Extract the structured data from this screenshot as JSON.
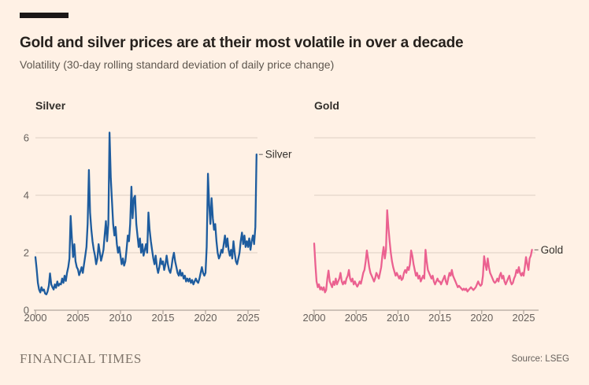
{
  "page": {
    "background": "#FFF1E5",
    "brand_bar_color": "#1A1817"
  },
  "header": {
    "title": "Gold and silver prices are at their most volatile in over a decade",
    "subtitle": "Volatility (30-day rolling standard deviation of daily price change)"
  },
  "footer": {
    "brand": "FINANCIAL TIMES",
    "source": "Source: LSEG"
  },
  "styles": {
    "grid_color": "#DDD0C2",
    "axis_color": "#9C948A",
    "axis_text_color": "#66605C",
    "label_text_color": "#33302C",
    "silver_color": "#1E5C9E",
    "gold_color": "#EB6190"
  },
  "chart_data": [
    {
      "type": "line",
      "title": "Silver",
      "series_label": "Silver",
      "color": "#1E5C9E",
      "x_start": 2000,
      "x_step": 0.142857,
      "xlim": [
        2000,
        2026.3
      ],
      "ylim": [
        0,
        6.4
      ],
      "yticks": [
        0,
        2,
        4,
        6
      ],
      "xticks": [
        2000,
        2005,
        2010,
        2015,
        2020,
        2025
      ],
      "show_y_labels": true,
      "grid": true,
      "values": [
        1.85,
        1.45,
        0.95,
        0.72,
        0.62,
        0.8,
        0.68,
        0.72,
        0.58,
        0.55,
        0.65,
        0.85,
        1.28,
        0.9,
        0.8,
        0.72,
        0.9,
        0.78,
        1.0,
        0.85,
        0.92,
        0.9,
        1.1,
        0.95,
        1.2,
        1.02,
        1.3,
        1.5,
        1.8,
        3.28,
        2.5,
        1.85,
        2.3,
        1.7,
        1.5,
        1.42,
        1.22,
        1.35,
        1.5,
        1.3,
        1.6,
        1.9,
        2.2,
        3.0,
        4.88,
        3.4,
        2.8,
        2.4,
        2.1,
        1.9,
        1.6,
        1.8,
        2.3,
        2.0,
        1.72,
        1.9,
        2.1,
        2.6,
        3.1,
        2.4,
        3.0,
        6.18,
        4.6,
        3.8,
        3.0,
        2.6,
        2.9,
        2.3,
        2.0,
        2.2,
        1.9,
        1.6,
        1.8,
        1.55,
        1.7,
        2.1,
        2.6,
        2.4,
        3.0,
        4.3,
        3.2,
        3.9,
        3.98,
        3.0,
        2.6,
        2.2,
        2.5,
        2.0,
        2.3,
        1.9,
        2.1,
        2.3,
        2.0,
        3.4,
        2.8,
        2.4,
        2.1,
        1.8,
        1.6,
        1.9,
        1.5,
        1.3,
        1.5,
        1.8,
        1.6,
        1.7,
        1.4,
        1.6,
        1.9,
        1.6,
        1.4,
        1.3,
        1.5,
        1.8,
        2.0,
        1.7,
        1.5,
        1.3,
        1.2,
        1.4,
        1.2,
        1.3,
        1.1,
        1.2,
        1.0,
        1.1,
        1.0,
        1.1,
        0.95,
        1.05,
        0.9,
        1.0,
        1.1,
        1.0,
        0.95,
        1.1,
        1.3,
        1.5,
        1.3,
        1.2,
        1.3,
        2.2,
        4.75,
        3.7,
        3.0,
        3.9,
        3.2,
        2.8,
        3.0,
        2.4,
        2.0,
        1.8,
        1.9,
        2.1,
        2.0,
        2.3,
        2.6,
        2.2,
        2.5,
        2.1,
        1.9,
        2.1,
        1.8,
        2.4,
        2.0,
        1.7,
        1.6,
        1.8,
        2.0,
        2.4,
        2.7,
        2.3,
        2.6,
        2.2,
        2.4,
        2.2,
        2.5,
        2.1,
        2.4,
        2.6,
        2.3,
        2.9,
        5.42
      ]
    },
    {
      "type": "line",
      "title": "Gold",
      "series_label": "Gold",
      "color": "#EB6190",
      "x_start": 2000,
      "x_step": 0.142857,
      "xlim": [
        2000,
        2026.3
      ],
      "ylim": [
        0,
        6.4
      ],
      "yticks": [
        0,
        2,
        4,
        6
      ],
      "xticks": [
        2000,
        2005,
        2010,
        2015,
        2020,
        2025
      ],
      "show_y_labels": false,
      "grid": true,
      "values": [
        2.32,
        1.6,
        1.0,
        0.8,
        0.9,
        0.72,
        0.8,
        0.7,
        0.8,
        0.62,
        0.7,
        1.1,
        1.38,
        1.0,
        0.9,
        0.8,
        1.0,
        0.88,
        1.1,
        0.9,
        1.0,
        1.1,
        1.3,
        1.0,
        0.9,
        1.0,
        0.92,
        1.1,
        1.2,
        1.4,
        1.1,
        1.0,
        1.1,
        0.9,
        1.0,
        0.9,
        0.82,
        0.9,
        1.0,
        0.92,
        1.1,
        1.3,
        1.4,
        1.7,
        2.08,
        1.8,
        1.5,
        1.3,
        1.2,
        1.1,
        1.0,
        1.12,
        1.3,
        1.2,
        1.1,
        1.3,
        1.5,
        1.9,
        2.2,
        1.8,
        2.1,
        3.48,
        2.9,
        2.4,
        2.0,
        1.7,
        1.5,
        1.35,
        1.2,
        1.3,
        1.2,
        1.1,
        1.2,
        1.05,
        1.1,
        1.3,
        1.4,
        1.3,
        1.5,
        1.4,
        1.6,
        2.08,
        1.9,
        1.6,
        1.4,
        1.2,
        1.3,
        1.1,
        1.2,
        1.0,
        1.1,
        1.2,
        1.1,
        2.1,
        1.7,
        1.4,
        1.3,
        1.2,
        1.1,
        1.2,
        1.0,
        0.9,
        1.0,
        1.1,
        1.0,
        1.0,
        0.9,
        1.0,
        1.1,
        1.2,
        1.0,
        0.9,
        1.1,
        1.3,
        1.2,
        1.4,
        1.2,
        1.1,
        1.0,
        0.9,
        0.8,
        0.85,
        0.8,
        0.75,
        0.7,
        0.75,
        0.7,
        0.75,
        0.65,
        0.7,
        0.75,
        0.8,
        0.75,
        0.7,
        0.75,
        0.8,
        0.9,
        1.0,
        0.9,
        0.85,
        0.9,
        1.2,
        1.88,
        1.6,
        1.4,
        1.8,
        1.5,
        1.3,
        1.2,
        1.1,
        1.0,
        0.95,
        1.0,
        1.1,
        1.0,
        1.2,
        1.3,
        1.1,
        1.2,
        1.0,
        0.9,
        1.0,
        1.1,
        1.2,
        1.0,
        0.9,
        0.95,
        1.1,
        1.2,
        1.4,
        1.3,
        1.5,
        1.3,
        1.2,
        1.3,
        1.2,
        1.5,
        1.85,
        1.6,
        1.4,
        1.8,
        1.9,
        2.1
      ]
    }
  ]
}
